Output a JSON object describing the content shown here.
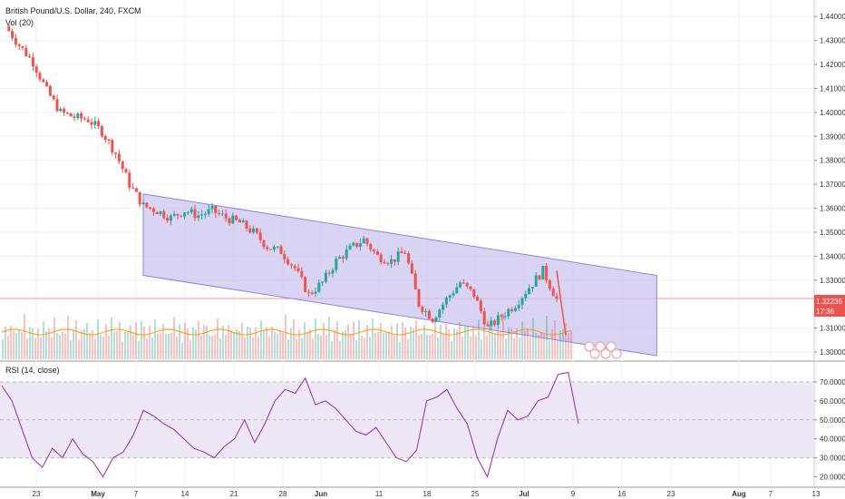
{
  "header": {
    "symbol_line": "British Pound/U.S. Dollar, 240, FXCM",
    "volume_label": "Vol (20)",
    "rsi_label": "RSI (14, close)"
  },
  "price_badge": {
    "value": "1.32236",
    "countdown": "17:36",
    "color": "#ef5350"
  },
  "colors": {
    "up": "#26a69a",
    "down": "#ef5350",
    "channel_fill": "#c9c2ee",
    "channel_line": "#8e86d8",
    "rsi_line": "#9c27b0",
    "rsi_band": "#ede7f6",
    "volume_ma": "#ff9800"
  },
  "chart_data": [
    {
      "type": "candlestick",
      "title": "British Pound/U.S. Dollar, 240, FXCM",
      "y_ticks": [
        "1.44000",
        "1.43000",
        "1.42000",
        "1.41000",
        "1.40000",
        "1.39000",
        "1.38000",
        "1.37000",
        "1.36000",
        "1.35000",
        "1.34000",
        "1.33000",
        "1.31000",
        "1.30000"
      ],
      "ylim": [
        1.297,
        1.445
      ],
      "x_ticks": [
        "23",
        "May",
        "7",
        "14",
        "21",
        "28",
        "Jun",
        "11",
        "18",
        "25",
        "Jul",
        "9",
        "16",
        "23",
        "Aug",
        "7",
        "13"
      ],
      "last_price": 1.32236,
      "price_path": [
        [
          0,
          1.436
        ],
        [
          1,
          1.428
        ],
        [
          2,
          1.421
        ],
        [
          3,
          1.409
        ],
        [
          4,
          1.4
        ],
        [
          5,
          1.398
        ],
        [
          6,
          1.397
        ],
        [
          7,
          1.392
        ],
        [
          8,
          1.383
        ],
        [
          9,
          1.37
        ],
        [
          10,
          1.361
        ],
        [
          11,
          1.359
        ],
        [
          12,
          1.356
        ],
        [
          13,
          1.359
        ],
        [
          14,
          1.357
        ],
        [
          15,
          1.359
        ],
        [
          16,
          1.356
        ],
        [
          17,
          1.354
        ],
        [
          18,
          1.35
        ],
        [
          19,
          1.344
        ],
        [
          20,
          1.342
        ],
        [
          21,
          1.335
        ],
        [
          22,
          1.324
        ],
        [
          23,
          1.329
        ],
        [
          24,
          1.338
        ],
        [
          25,
          1.343
        ],
        [
          26,
          1.347
        ],
        [
          27,
          1.34
        ],
        [
          28,
          1.338
        ],
        [
          29,
          1.342
        ],
        [
          30,
          1.32
        ],
        [
          31,
          1.314
        ],
        [
          32,
          1.322
        ],
        [
          33,
          1.329
        ],
        [
          34,
          1.324
        ],
        [
          35,
          1.31
        ],
        [
          36,
          1.315
        ],
        [
          37,
          1.32
        ],
        [
          38,
          1.327
        ],
        [
          39,
          1.334
        ],
        [
          40,
          1.322
        ]
      ],
      "channel": {
        "upper": [
          [
            10,
            1.366
          ],
          [
            42,
            1.332
          ]
        ],
        "lower": [
          [
            10,
            1.332
          ],
          [
            42,
            1.2985
          ]
        ]
      },
      "horizontal_line": 1.32236
    },
    {
      "type": "area",
      "title": "Vol (20)",
      "pattern": [
        0.35,
        0.6,
        0.25,
        0.7,
        0.45,
        0.3,
        0.55,
        0.4,
        0.8,
        0.3,
        0.5,
        0.65,
        0.28,
        0.45,
        0.38,
        0.72
      ]
    },
    {
      "type": "line",
      "title": "RSI (14, close)",
      "y_ticks": [
        "70.0000",
        "60.0000",
        "50.0000",
        "40.0000",
        "30.0000",
        "20.0000"
      ],
      "ylim": [
        15,
        80
      ],
      "band": [
        30,
        70
      ],
      "values": [
        68,
        60,
        45,
        30,
        25,
        35,
        30,
        40,
        32,
        28,
        20,
        30,
        33,
        42,
        55,
        52,
        48,
        45,
        40,
        35,
        33,
        30,
        36,
        40,
        50,
        38,
        48,
        60,
        66,
        64,
        72,
        58,
        60,
        56,
        50,
        44,
        42,
        46,
        38,
        30,
        28,
        34,
        60,
        62,
        66,
        56,
        48,
        30,
        20,
        40,
        55,
        50,
        52,
        60,
        62,
        74,
        75,
        48
      ]
    }
  ]
}
